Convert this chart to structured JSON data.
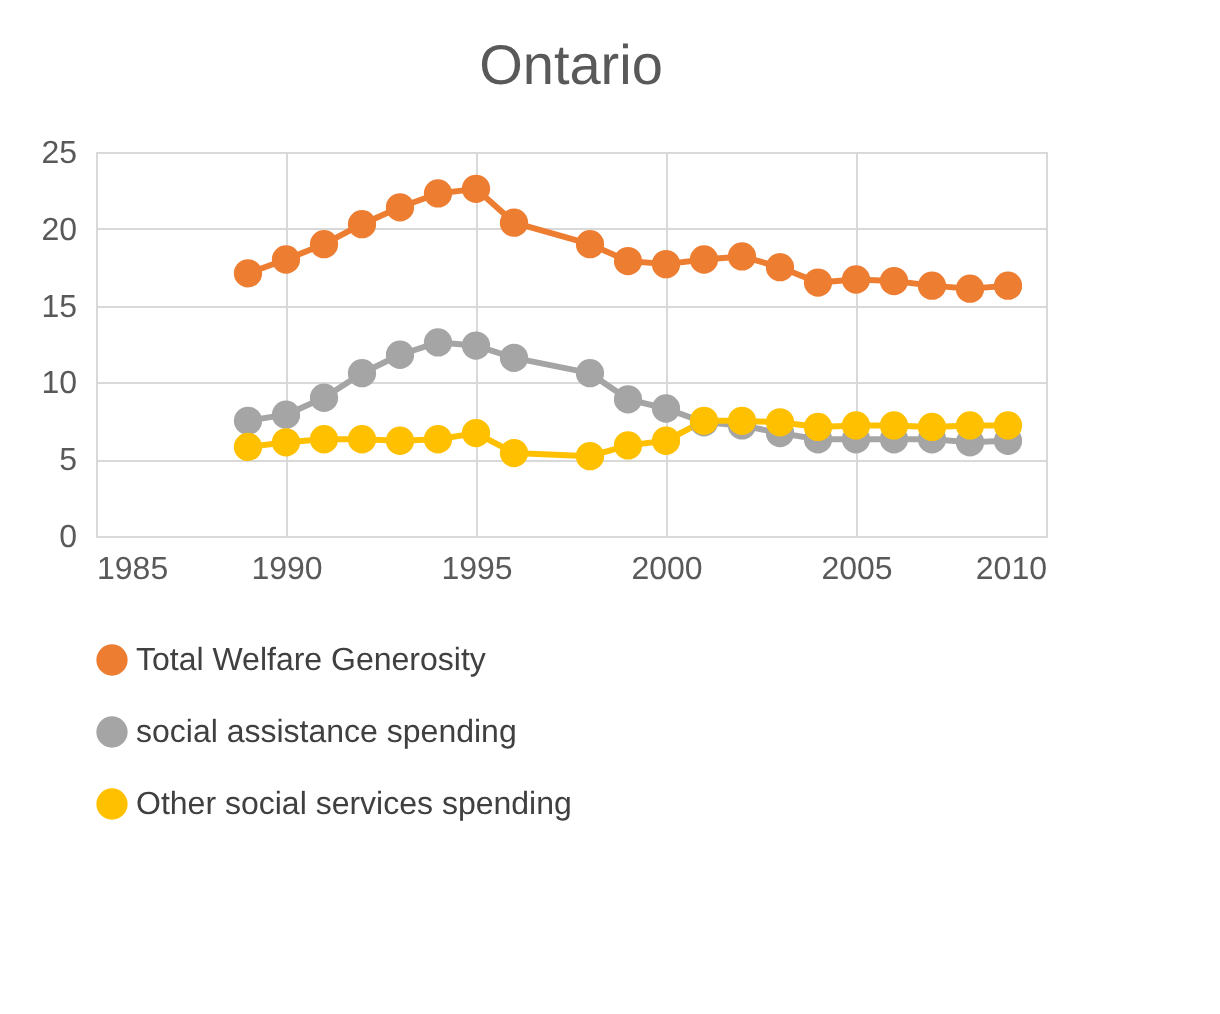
{
  "chart_data": {
    "type": "line",
    "title": "Ontario",
    "x": [
      1989,
      1990,
      1991,
      1992,
      1993,
      1994,
      1995,
      1996,
      1998,
      1999,
      2000,
      2001,
      2002,
      2003,
      2004,
      2005,
      2006,
      2007,
      2008,
      2009
    ],
    "series": [
      {
        "name": "Total Welfare Generosity",
        "color": "#ed7d31",
        "values": [
          17.1,
          18.0,
          19.0,
          20.3,
          21.4,
          22.3,
          22.6,
          20.4,
          19.0,
          17.9,
          17.7,
          18.0,
          18.2,
          17.5,
          16.5,
          16.7,
          16.6,
          16.3,
          16.1,
          16.3
        ]
      },
      {
        "name": "social assistance spending",
        "color": "#a5a5a5",
        "values": [
          7.5,
          7.9,
          9.0,
          10.6,
          11.8,
          12.6,
          12.4,
          11.6,
          10.6,
          8.9,
          8.3,
          7.4,
          7.2,
          6.7,
          6.3,
          6.3,
          6.3,
          6.3,
          6.1,
          6.2
        ]
      },
      {
        "name": "Other social services spending",
        "color": "#ffc000",
        "values": [
          5.8,
          6.1,
          6.3,
          6.3,
          6.2,
          6.3,
          6.7,
          5.4,
          5.2,
          5.9,
          6.2,
          7.5,
          7.5,
          7.4,
          7.1,
          7.2,
          7.2,
          7.1,
          7.2,
          7.2
        ]
      }
    ],
    "xlim": [
      1985,
      2010
    ],
    "xticks": [
      1985,
      1990,
      1995,
      2000,
      2005,
      2010
    ],
    "ylim": [
      0,
      25
    ],
    "yticks": [
      0,
      5,
      10,
      15,
      20,
      25
    ],
    "grid": true,
    "legend": "bottom",
    "marker": "circle",
    "line_style": "solid"
  }
}
